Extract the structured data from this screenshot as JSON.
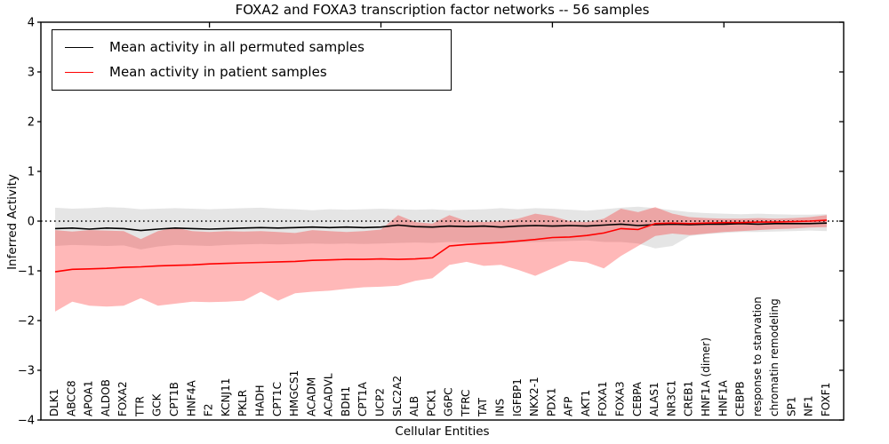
{
  "title": "FOXA2 and FOXA3 transcription factor networks -- 56 samples",
  "axes": {
    "xlabel": "Cellular Entities",
    "ylabel": "Inferred Activity",
    "ytick_labels": [
      "4",
      "3",
      "2",
      "1",
      "0",
      "−1",
      "−2",
      "−3",
      "−4"
    ],
    "ytick_values": [
      4,
      3,
      2,
      1,
      0,
      -1,
      -2,
      -3,
      -4
    ]
  },
  "legend": {
    "entries": [
      {
        "label": "Mean activity in all permuted samples",
        "color": "#000000"
      },
      {
        "label": "Mean activity in patient samples",
        "color": "#ff0000"
      }
    ]
  },
  "colors": {
    "permuted_line": "#000000",
    "patient_line": "#ff0000",
    "permuted_band": "rgba(0,0,0,0.10)",
    "patient_band": "rgba(255,0,0,0.28)",
    "zero_line": "#000000",
    "axis": "#000000"
  },
  "chart_data": {
    "type": "line",
    "title": "FOXA2 and FOXA3 transcription factor networks -- 56 samples",
    "xlabel": "Cellular Entities",
    "ylabel": "Inferred Activity",
    "ylim": [
      -4,
      4
    ],
    "grid": false,
    "zero_line_style": "dotted",
    "legend_position": "upper left",
    "top_tick_indices": [
      9,
      19,
      29,
      39
    ],
    "categories": [
      "DLK1",
      "ABCC8",
      "APOA1",
      "ALDOB",
      "FOXA2",
      "TTR",
      "GCK",
      "CPT1B",
      "HNF4A",
      "F2",
      "KCNJ11",
      "PKLR",
      "HADH",
      "CPT1C",
      "HMGCS1",
      "ACADM",
      "ACADVL",
      "BDH1",
      "CPT1A",
      "UCP2",
      "SLC2A2",
      "ALB",
      "PCK1",
      "G6PC",
      "TFRC",
      "TAT",
      "INS",
      "IGFBP1",
      "NKX2-1",
      "PDX1",
      "AFP",
      "AKT1",
      "FOXA1",
      "FOXA3",
      "CEBPA",
      "ALAS1",
      "NR3C1",
      "CREB1",
      "HNF1A (dimer)",
      "HNF1A",
      "CEBPB",
      "response to starvation",
      "chromatin remodeling",
      "SP1",
      "NF1",
      "FOXF1"
    ],
    "series": [
      {
        "name": "Mean activity in all permuted samples",
        "color": "#000000",
        "values": [
          -0.15,
          -0.14,
          -0.16,
          -0.14,
          -0.15,
          -0.19,
          -0.16,
          -0.14,
          -0.15,
          -0.16,
          -0.15,
          -0.14,
          -0.13,
          -0.14,
          -0.13,
          -0.12,
          -0.13,
          -0.12,
          -0.13,
          -0.12,
          -0.08,
          -0.11,
          -0.12,
          -0.1,
          -0.11,
          -0.1,
          -0.12,
          -0.1,
          -0.09,
          -0.1,
          -0.09,
          -0.1,
          -0.08,
          -0.06,
          -0.09,
          -0.07,
          -0.06,
          -0.07,
          -0.06,
          -0.06,
          -0.05,
          -0.06,
          -0.05,
          -0.05,
          -0.05,
          -0.04
        ],
        "band_upper": [
          0.27,
          0.25,
          0.26,
          0.28,
          0.27,
          0.24,
          0.25,
          0.26,
          0.25,
          0.24,
          0.25,
          0.26,
          0.27,
          0.25,
          0.24,
          0.22,
          0.24,
          0.23,
          0.24,
          0.25,
          0.24,
          0.23,
          0.24,
          0.22,
          0.23,
          0.24,
          0.26,
          0.24,
          0.26,
          0.25,
          0.23,
          0.21,
          0.24,
          0.27,
          0.29,
          0.26,
          0.22,
          0.18,
          0.16,
          0.15,
          0.14,
          0.15,
          0.14,
          0.13,
          0.13,
          0.14
        ],
        "band_lower": [
          -0.5,
          -0.48,
          -0.49,
          -0.5,
          -0.49,
          -0.57,
          -0.51,
          -0.48,
          -0.49,
          -0.5,
          -0.48,
          -0.47,
          -0.46,
          -0.47,
          -0.46,
          -0.45,
          -0.46,
          -0.45,
          -0.46,
          -0.45,
          -0.44,
          -0.43,
          -0.44,
          -0.42,
          -0.43,
          -0.44,
          -0.45,
          -0.43,
          -0.42,
          -0.41,
          -0.4,
          -0.39,
          -0.42,
          -0.42,
          -0.45,
          -0.55,
          -0.5,
          -0.3,
          -0.26,
          -0.24,
          -0.22,
          -0.22,
          -0.21,
          -0.2,
          -0.19,
          -0.2
        ],
        "band_color": "rgba(0,0,0,0.10)"
      },
      {
        "name": "Mean activity in patient samples",
        "color": "#ff0000",
        "values": [
          -1.02,
          -0.97,
          -0.96,
          -0.95,
          -0.93,
          -0.92,
          -0.9,
          -0.89,
          -0.88,
          -0.86,
          -0.85,
          -0.84,
          -0.83,
          -0.82,
          -0.81,
          -0.79,
          -0.78,
          -0.77,
          -0.77,
          -0.76,
          -0.77,
          -0.76,
          -0.74,
          -0.5,
          -0.47,
          -0.45,
          -0.43,
          -0.4,
          -0.37,
          -0.33,
          -0.32,
          -0.29,
          -0.24,
          -0.15,
          -0.17,
          -0.05,
          -0.04,
          -0.05,
          -0.04,
          -0.03,
          -0.03,
          -0.02,
          -0.02,
          -0.01,
          0.0,
          0.02
        ],
        "band_upper": [
          -0.18,
          -0.21,
          -0.18,
          -0.19,
          -0.2,
          -0.36,
          -0.2,
          -0.13,
          -0.2,
          -0.22,
          -0.2,
          -0.21,
          -0.2,
          -0.22,
          -0.24,
          -0.18,
          -0.2,
          -0.22,
          -0.2,
          -0.17,
          0.12,
          -0.02,
          -0.05,
          0.12,
          0.0,
          -0.02,
          0.0,
          0.05,
          0.15,
          0.1,
          0.0,
          -0.02,
          0.05,
          0.25,
          0.18,
          0.28,
          0.15,
          0.08,
          0.06,
          0.05,
          0.05,
          0.06,
          0.05,
          0.06,
          0.08,
          0.12
        ],
        "band_lower": [
          -1.82,
          -1.62,
          -1.7,
          -1.72,
          -1.7,
          -1.55,
          -1.7,
          -1.66,
          -1.62,
          -1.63,
          -1.62,
          -1.6,
          -1.42,
          -1.6,
          -1.45,
          -1.42,
          -1.4,
          -1.36,
          -1.33,
          -1.32,
          -1.3,
          -1.2,
          -1.15,
          -0.88,
          -0.82,
          -0.9,
          -0.88,
          -0.98,
          -1.1,
          -0.95,
          -0.8,
          -0.83,
          -0.95,
          -0.7,
          -0.5,
          -0.3,
          -0.25,
          -0.28,
          -0.25,
          -0.22,
          -0.2,
          -0.18,
          -0.16,
          -0.15,
          -0.13,
          -0.12
        ],
        "band_color": "rgba(255,0,0,0.28)"
      }
    ]
  }
}
